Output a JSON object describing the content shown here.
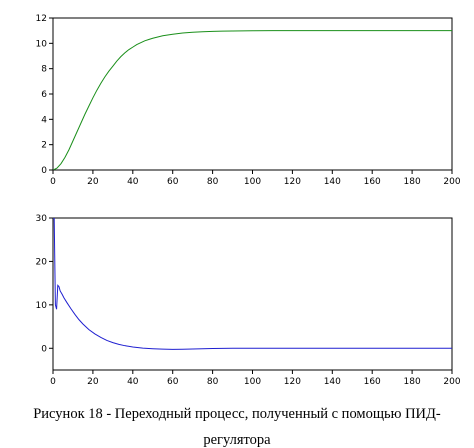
{
  "chart_data": [
    {
      "type": "line",
      "title": "",
      "xlabel": "",
      "ylabel": "",
      "xlim": [
        0,
        200
      ],
      "ylim": [
        0,
        12
      ],
      "x_ticks": [
        "0",
        "20",
        "40",
        "60",
        "80",
        "100",
        "120",
        "140",
        "160",
        "180",
        "200"
      ],
      "y_ticks": [
        "0",
        "2",
        "4",
        "6",
        "8",
        "10",
        "12"
      ],
      "grid": false,
      "series": [
        {
          "color": "#1a8f1a",
          "x": [
            0,
            2,
            4,
            6,
            8,
            10,
            12,
            14,
            16,
            18,
            20,
            22,
            24,
            26,
            28,
            30,
            32,
            34,
            36,
            38,
            40,
            42,
            44,
            46,
            48,
            50,
            55,
            60,
            65,
            70,
            75,
            80,
            85,
            90,
            95,
            100,
            110,
            120,
            140,
            160,
            180,
            200
          ],
          "y": [
            0,
            0.15,
            0.5,
            1.0,
            1.6,
            2.3,
            3.0,
            3.7,
            4.4,
            5.05,
            5.7,
            6.3,
            6.85,
            7.35,
            7.8,
            8.2,
            8.6,
            8.95,
            9.25,
            9.5,
            9.7,
            9.9,
            10.05,
            10.2,
            10.3,
            10.4,
            10.6,
            10.72,
            10.82,
            10.87,
            10.91,
            10.94,
            10.96,
            10.97,
            10.98,
            10.99,
            11.0,
            11.0,
            11.0,
            11.0,
            11.0,
            11.0
          ]
        }
      ]
    },
    {
      "type": "line",
      "title": "",
      "xlabel": "",
      "ylabel": "",
      "xlim": [
        0,
        200
      ],
      "ylim": [
        -5,
        30
      ],
      "x_ticks": [
        "0",
        "20",
        "40",
        "60",
        "80",
        "100",
        "120",
        "140",
        "160",
        "180",
        "200"
      ],
      "y_ticks": [
        "0",
        "10",
        "20",
        "30"
      ],
      "grid": false,
      "series": [
        {
          "color": "#1f1fd0",
          "x": [
            0,
            0.6,
            1.2,
            1.8,
            2.4,
            3,
            3.6,
            4.5,
            5.5,
            7,
            9,
            11,
            13,
            15,
            18,
            21,
            24,
            27,
            30,
            33,
            36,
            40,
            45,
            50,
            55,
            60,
            65,
            70,
            75,
            80,
            90,
            100,
            120,
            140,
            160,
            180,
            200
          ],
          "y": [
            30,
            30,
            10,
            9,
            14.5,
            14.2,
            13.2,
            12.5,
            11.6,
            10.5,
            9.1,
            7.8,
            6.6,
            5.6,
            4.3,
            3.3,
            2.5,
            1.8,
            1.3,
            0.9,
            0.6,
            0.3,
            0.05,
            -0.1,
            -0.2,
            -0.25,
            -0.22,
            -0.15,
            -0.1,
            -0.05,
            0,
            0,
            0,
            0,
            0,
            0,
            0
          ]
        }
      ]
    }
  ],
  "caption": {
    "line1": "Рисунок 18 - Переходный процесс, полученный с помощью ПИД-",
    "line2": "регулятора"
  }
}
